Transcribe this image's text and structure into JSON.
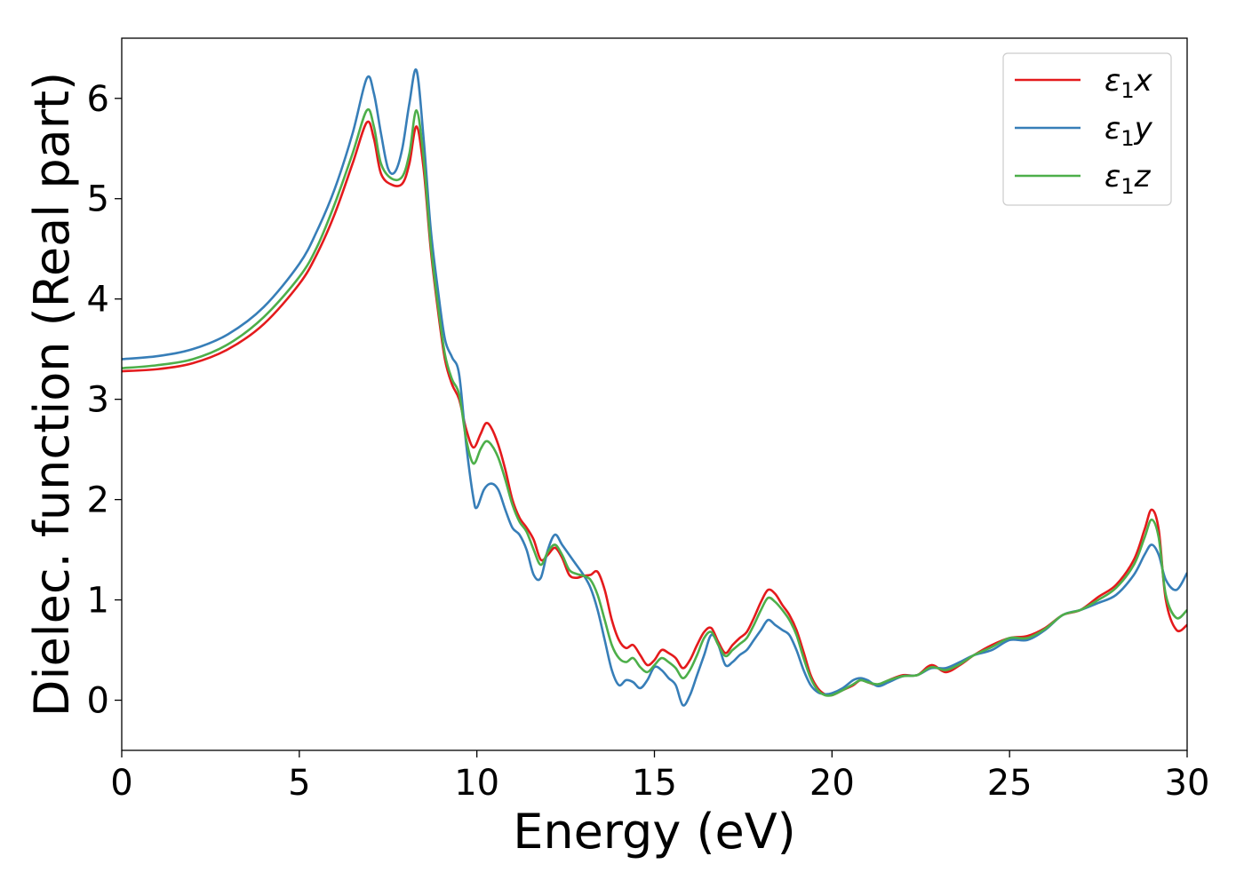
{
  "chart_data": {
    "type": "line",
    "xlabel": "Energy (eV)",
    "ylabel": "Dielec. function (Real part)",
    "xlim": [
      0,
      30
    ],
    "ylim": [
      -0.5,
      6.6
    ],
    "xticks": [
      0,
      5,
      10,
      15,
      20,
      25,
      30
    ],
    "yticks": [
      0,
      1,
      2,
      3,
      4,
      5,
      6
    ],
    "grid": false,
    "legend_position": "top-right",
    "series": [
      {
        "name": "ε₁x",
        "legend_base": "ε",
        "legend_sub": "1",
        "legend_var": "x",
        "color": "#e41a1c",
        "points": [
          [
            0,
            3.28
          ],
          [
            1,
            3.3
          ],
          [
            2,
            3.36
          ],
          [
            3,
            3.5
          ],
          [
            4,
            3.75
          ],
          [
            5,
            4.15
          ],
          [
            5.5,
            4.45
          ],
          [
            6,
            4.85
          ],
          [
            6.5,
            5.35
          ],
          [
            6.9,
            5.76
          ],
          [
            7.1,
            5.6
          ],
          [
            7.3,
            5.25
          ],
          [
            7.6,
            5.14
          ],
          [
            7.9,
            5.15
          ],
          [
            8.1,
            5.35
          ],
          [
            8.3,
            5.72
          ],
          [
            8.5,
            5.3
          ],
          [
            8.7,
            4.5
          ],
          [
            8.9,
            3.9
          ],
          [
            9.1,
            3.4
          ],
          [
            9.3,
            3.15
          ],
          [
            9.5,
            3.0
          ],
          [
            9.7,
            2.7
          ],
          [
            9.9,
            2.52
          ],
          [
            10.1,
            2.65
          ],
          [
            10.25,
            2.76
          ],
          [
            10.4,
            2.72
          ],
          [
            10.6,
            2.55
          ],
          [
            10.8,
            2.3
          ],
          [
            11.0,
            2.0
          ],
          [
            11.2,
            1.82
          ],
          [
            11.4,
            1.72
          ],
          [
            11.6,
            1.6
          ],
          [
            11.8,
            1.4
          ],
          [
            12.0,
            1.45
          ],
          [
            12.2,
            1.52
          ],
          [
            12.4,
            1.42
          ],
          [
            12.6,
            1.25
          ],
          [
            12.8,
            1.22
          ],
          [
            13.0,
            1.24
          ],
          [
            13.2,
            1.25
          ],
          [
            13.4,
            1.28
          ],
          [
            13.6,
            1.1
          ],
          [
            13.8,
            0.8
          ],
          [
            14.0,
            0.6
          ],
          [
            14.2,
            0.52
          ],
          [
            14.4,
            0.55
          ],
          [
            14.6,
            0.45
          ],
          [
            14.8,
            0.35
          ],
          [
            15.0,
            0.4
          ],
          [
            15.2,
            0.5
          ],
          [
            15.4,
            0.47
          ],
          [
            15.6,
            0.42
          ],
          [
            15.8,
            0.32
          ],
          [
            16.0,
            0.4
          ],
          [
            16.2,
            0.55
          ],
          [
            16.4,
            0.68
          ],
          [
            16.6,
            0.72
          ],
          [
            16.8,
            0.58
          ],
          [
            17.0,
            0.47
          ],
          [
            17.2,
            0.55
          ],
          [
            17.4,
            0.62
          ],
          [
            17.6,
            0.68
          ],
          [
            17.8,
            0.82
          ],
          [
            18.0,
            0.98
          ],
          [
            18.2,
            1.1
          ],
          [
            18.4,
            1.06
          ],
          [
            18.6,
            0.95
          ],
          [
            18.8,
            0.85
          ],
          [
            19.0,
            0.7
          ],
          [
            19.2,
            0.48
          ],
          [
            19.4,
            0.25
          ],
          [
            19.6,
            0.12
          ],
          [
            19.8,
            0.06
          ],
          [
            20.0,
            0.05
          ],
          [
            20.3,
            0.1
          ],
          [
            20.6,
            0.15
          ],
          [
            20.8,
            0.2
          ],
          [
            21.0,
            0.18
          ],
          [
            21.3,
            0.15
          ],
          [
            21.6,
            0.2
          ],
          [
            22.0,
            0.25
          ],
          [
            22.4,
            0.25
          ],
          [
            22.8,
            0.35
          ],
          [
            23.2,
            0.28
          ],
          [
            23.6,
            0.35
          ],
          [
            24.0,
            0.45
          ],
          [
            24.5,
            0.55
          ],
          [
            25.0,
            0.62
          ],
          [
            25.5,
            0.64
          ],
          [
            26.0,
            0.72
          ],
          [
            26.5,
            0.85
          ],
          [
            27.0,
            0.9
          ],
          [
            27.5,
            1.03
          ],
          [
            28.0,
            1.15
          ],
          [
            28.5,
            1.4
          ],
          [
            28.8,
            1.7
          ],
          [
            29.0,
            1.9
          ],
          [
            29.2,
            1.7
          ],
          [
            29.4,
            1.0
          ],
          [
            29.7,
            0.7
          ],
          [
            30.0,
            0.75
          ]
        ]
      },
      {
        "name": "ε₁y",
        "legend_base": "ε",
        "legend_sub": "1",
        "legend_var": "y",
        "color": "#377eb8",
        "points": [
          [
            0,
            3.4
          ],
          [
            1,
            3.43
          ],
          [
            2,
            3.5
          ],
          [
            3,
            3.65
          ],
          [
            4,
            3.92
          ],
          [
            5,
            4.35
          ],
          [
            5.5,
            4.68
          ],
          [
            6,
            5.1
          ],
          [
            6.5,
            5.65
          ],
          [
            6.9,
            6.2
          ],
          [
            7.1,
            6.05
          ],
          [
            7.3,
            5.65
          ],
          [
            7.5,
            5.3
          ],
          [
            7.7,
            5.27
          ],
          [
            7.9,
            5.5
          ],
          [
            8.1,
            5.95
          ],
          [
            8.3,
            6.28
          ],
          [
            8.5,
            5.6
          ],
          [
            8.7,
            4.7
          ],
          [
            8.9,
            4.1
          ],
          [
            9.1,
            3.6
          ],
          [
            9.3,
            3.42
          ],
          [
            9.5,
            3.25
          ],
          [
            9.7,
            2.55
          ],
          [
            9.9,
            2.02
          ],
          [
            10.0,
            1.92
          ],
          [
            10.2,
            2.1
          ],
          [
            10.4,
            2.16
          ],
          [
            10.6,
            2.1
          ],
          [
            10.8,
            1.9
          ],
          [
            11.0,
            1.72
          ],
          [
            11.2,
            1.65
          ],
          [
            11.4,
            1.5
          ],
          [
            11.6,
            1.25
          ],
          [
            11.8,
            1.22
          ],
          [
            12.0,
            1.5
          ],
          [
            12.2,
            1.65
          ],
          [
            12.4,
            1.55
          ],
          [
            12.6,
            1.45
          ],
          [
            12.8,
            1.35
          ],
          [
            13.0,
            1.25
          ],
          [
            13.2,
            1.12
          ],
          [
            13.4,
            0.9
          ],
          [
            13.6,
            0.6
          ],
          [
            13.8,
            0.3
          ],
          [
            14.0,
            0.15
          ],
          [
            14.2,
            0.2
          ],
          [
            14.4,
            0.18
          ],
          [
            14.6,
            0.12
          ],
          [
            14.8,
            0.2
          ],
          [
            15.0,
            0.33
          ],
          [
            15.2,
            0.3
          ],
          [
            15.4,
            0.22
          ],
          [
            15.6,
            0.15
          ],
          [
            15.8,
            -0.05
          ],
          [
            16.0,
            0.05
          ],
          [
            16.2,
            0.25
          ],
          [
            16.4,
            0.45
          ],
          [
            16.6,
            0.65
          ],
          [
            16.8,
            0.55
          ],
          [
            17.0,
            0.35
          ],
          [
            17.2,
            0.38
          ],
          [
            17.4,
            0.45
          ],
          [
            17.6,
            0.5
          ],
          [
            17.8,
            0.6
          ],
          [
            18.0,
            0.7
          ],
          [
            18.2,
            0.8
          ],
          [
            18.4,
            0.75
          ],
          [
            18.6,
            0.7
          ],
          [
            18.8,
            0.65
          ],
          [
            19.0,
            0.5
          ],
          [
            19.2,
            0.3
          ],
          [
            19.4,
            0.15
          ],
          [
            19.6,
            0.08
          ],
          [
            19.8,
            0.06
          ],
          [
            20.0,
            0.07
          ],
          [
            20.3,
            0.12
          ],
          [
            20.6,
            0.2
          ],
          [
            20.8,
            0.22
          ],
          [
            21.0,
            0.2
          ],
          [
            21.3,
            0.14
          ],
          [
            21.6,
            0.18
          ],
          [
            22.0,
            0.24
          ],
          [
            22.4,
            0.25
          ],
          [
            22.8,
            0.32
          ],
          [
            23.2,
            0.32
          ],
          [
            23.6,
            0.38
          ],
          [
            24.0,
            0.45
          ],
          [
            24.5,
            0.5
          ],
          [
            25.0,
            0.6
          ],
          [
            25.5,
            0.6
          ],
          [
            26.0,
            0.7
          ],
          [
            26.5,
            0.85
          ],
          [
            27.0,
            0.9
          ],
          [
            27.5,
            0.97
          ],
          [
            28.0,
            1.05
          ],
          [
            28.5,
            1.25
          ],
          [
            28.8,
            1.45
          ],
          [
            29.0,
            1.55
          ],
          [
            29.2,
            1.45
          ],
          [
            29.4,
            1.2
          ],
          [
            29.7,
            1.1
          ],
          [
            30.0,
            1.27
          ]
        ]
      },
      {
        "name": "ε₁z",
        "legend_base": "ε",
        "legend_sub": "1",
        "legend_var": "z",
        "color": "#4daf4a",
        "points": [
          [
            0,
            3.31
          ],
          [
            1,
            3.34
          ],
          [
            2,
            3.4
          ],
          [
            3,
            3.55
          ],
          [
            4,
            3.82
          ],
          [
            5,
            4.22
          ],
          [
            5.5,
            4.52
          ],
          [
            6,
            4.95
          ],
          [
            6.5,
            5.45
          ],
          [
            6.9,
            5.88
          ],
          [
            7.1,
            5.72
          ],
          [
            7.3,
            5.35
          ],
          [
            7.6,
            5.2
          ],
          [
            7.9,
            5.22
          ],
          [
            8.1,
            5.45
          ],
          [
            8.3,
            5.88
          ],
          [
            8.5,
            5.4
          ],
          [
            8.7,
            4.55
          ],
          [
            8.9,
            3.95
          ],
          [
            9.1,
            3.45
          ],
          [
            9.3,
            3.2
          ],
          [
            9.5,
            3.05
          ],
          [
            9.7,
            2.6
          ],
          [
            9.9,
            2.36
          ],
          [
            10.1,
            2.5
          ],
          [
            10.25,
            2.58
          ],
          [
            10.4,
            2.55
          ],
          [
            10.6,
            2.42
          ],
          [
            10.8,
            2.2
          ],
          [
            11.0,
            1.95
          ],
          [
            11.2,
            1.78
          ],
          [
            11.4,
            1.68
          ],
          [
            11.6,
            1.5
          ],
          [
            11.8,
            1.35
          ],
          [
            12.0,
            1.48
          ],
          [
            12.2,
            1.55
          ],
          [
            12.4,
            1.45
          ],
          [
            12.6,
            1.3
          ],
          [
            12.8,
            1.26
          ],
          [
            13.0,
            1.24
          ],
          [
            13.2,
            1.2
          ],
          [
            13.4,
            1.05
          ],
          [
            13.6,
            0.8
          ],
          [
            13.8,
            0.55
          ],
          [
            14.0,
            0.42
          ],
          [
            14.2,
            0.38
          ],
          [
            14.4,
            0.42
          ],
          [
            14.6,
            0.33
          ],
          [
            14.8,
            0.28
          ],
          [
            15.0,
            0.35
          ],
          [
            15.2,
            0.42
          ],
          [
            15.4,
            0.38
          ],
          [
            15.6,
            0.32
          ],
          [
            15.8,
            0.22
          ],
          [
            16.0,
            0.3
          ],
          [
            16.2,
            0.45
          ],
          [
            16.4,
            0.62
          ],
          [
            16.6,
            0.68
          ],
          [
            16.8,
            0.55
          ],
          [
            17.0,
            0.44
          ],
          [
            17.2,
            0.5
          ],
          [
            17.4,
            0.56
          ],
          [
            17.6,
            0.62
          ],
          [
            17.8,
            0.75
          ],
          [
            18.0,
            0.9
          ],
          [
            18.2,
            1.02
          ],
          [
            18.4,
            0.98
          ],
          [
            18.6,
            0.9
          ],
          [
            18.8,
            0.8
          ],
          [
            19.0,
            0.65
          ],
          [
            19.2,
            0.42
          ],
          [
            19.4,
            0.22
          ],
          [
            19.6,
            0.1
          ],
          [
            19.8,
            0.05
          ],
          [
            20.0,
            0.05
          ],
          [
            20.3,
            0.1
          ],
          [
            20.6,
            0.16
          ],
          [
            20.8,
            0.2
          ],
          [
            21.0,
            0.18
          ],
          [
            21.3,
            0.16
          ],
          [
            21.6,
            0.2
          ],
          [
            22.0,
            0.24
          ],
          [
            22.4,
            0.25
          ],
          [
            22.8,
            0.33
          ],
          [
            23.2,
            0.3
          ],
          [
            23.6,
            0.36
          ],
          [
            24.0,
            0.45
          ],
          [
            24.5,
            0.53
          ],
          [
            25.0,
            0.62
          ],
          [
            25.5,
            0.62
          ],
          [
            26.0,
            0.71
          ],
          [
            26.5,
            0.85
          ],
          [
            27.0,
            0.9
          ],
          [
            27.5,
            1.0
          ],
          [
            28.0,
            1.12
          ],
          [
            28.5,
            1.35
          ],
          [
            28.8,
            1.62
          ],
          [
            29.0,
            1.8
          ],
          [
            29.2,
            1.62
          ],
          [
            29.4,
            1.05
          ],
          [
            29.7,
            0.82
          ],
          [
            30.0,
            0.9
          ]
        ]
      }
    ]
  }
}
